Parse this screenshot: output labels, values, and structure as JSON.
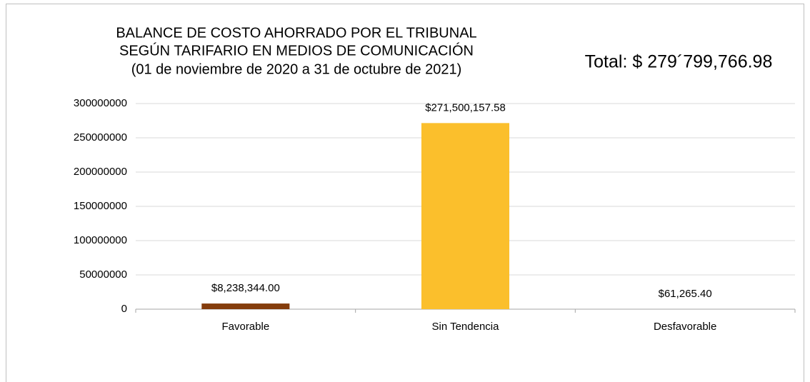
{
  "chart_data": {
    "type": "bar",
    "title": [
      "BALANCE DE COSTO AHORRADO POR EL TRIBUNAL",
      "SEGÚN TARIFARIO EN MEDIOS DE COMUNICACIÓN",
      "(01 de noviembre de 2020 a 31 de octubre de 2021)"
    ],
    "annotation": "Total: $ 279´799,766.98",
    "categories": [
      "Favorable",
      "Sin Tendencia",
      "Desfavorable"
    ],
    "values": [
      8238344,
      271500157.58,
      61265.4
    ],
    "value_labels": [
      "$8,238,344.00",
      "$271,500,157.58",
      "$61,265.40"
    ],
    "colors": [
      "#843c0c",
      "#fbbf2c",
      "#a5a5a5"
    ],
    "ylim": [
      0,
      300000000
    ],
    "yticks": [
      0,
      50000000,
      100000000,
      150000000,
      200000000,
      250000000,
      300000000
    ],
    "grid": true
  }
}
